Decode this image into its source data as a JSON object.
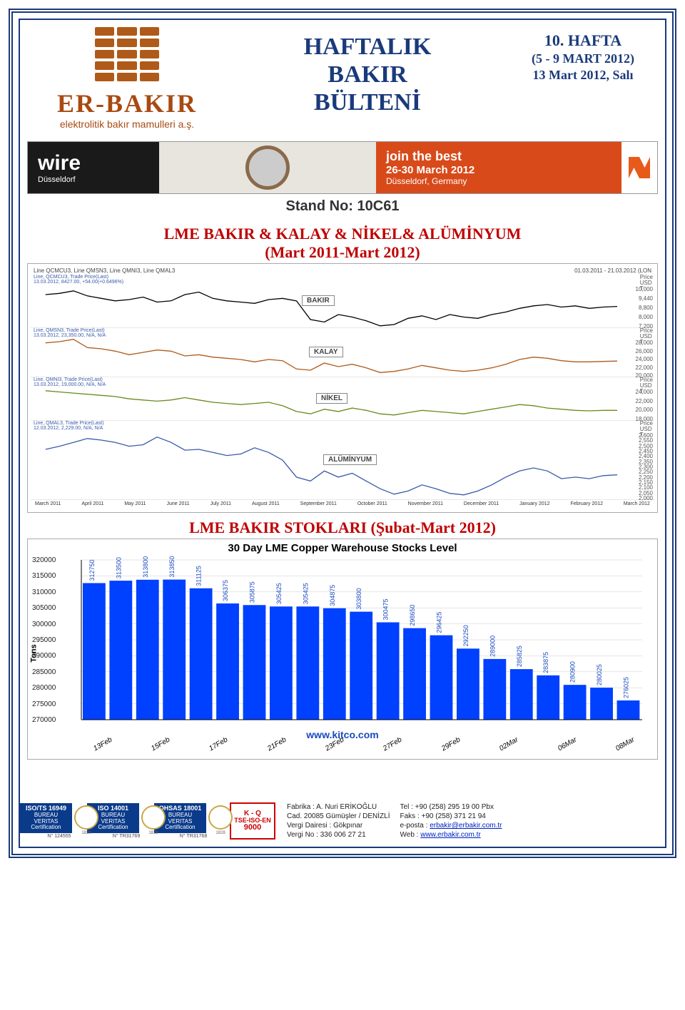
{
  "header": {
    "brand_name": "ER-BAKIR",
    "brand_sub": "elektrolitik bakır mamulleri a.ş.",
    "title_l1": "HAFTALIK",
    "title_l2": "BAKIR",
    "title_l3": "BÜLTENİ",
    "week_no": "10. HAFTA",
    "week_range": "(5 - 9 MART 2012)",
    "issue_date": "13 Mart 2012, Salı"
  },
  "wire_banner": {
    "brand": "wire",
    "city": "Düsseldorf",
    "join": "join the best",
    "dates": "26-30 March 2012",
    "loc": "Düsseldorf, Germany",
    "stand_label": "Stand No: 10C61"
  },
  "lme_section": {
    "title_l1": "LME BAKIR & KALAY & NİKEL& ALÜMİNYUM",
    "title_l2": "(Mart 2011-Mart 2012)",
    "series_header": "Line QCMCU3, Line QMSN3, Line QMNI3, Line QMAL3",
    "date_range": "01.03.2011 - 21.03.2012 (LON",
    "bakir_subhead": "Line, QCMCU3, Trade Price(Last)\n13.03.2012, 8427.00, +54.00(+0.6496%)",
    "kalay_subhead": "Line, QMSN3, Trade Price(Last)\n13.03.2012, 23,350.00, N/A, N/A",
    "nikel_subhead": "Line, QMNI3, Trade Price(Last)\n13.03.2012, 19,000.00, N/A, N/A",
    "alu_subhead": "Line, QMAL3, Trade Price(Last)\n12.03.2012, 2,229.00, N/A, N/A",
    "panels": [
      {
        "label": "BAKIR",
        "color": "#000000",
        "unit": "Price\nUSD\nT",
        "ticks": [
          "10,000",
          "9,440",
          "8,800",
          "8,000",
          "7,200"
        ],
        "ylim": [
          7000,
          10200
        ],
        "points": [
          9400,
          9500,
          9700,
          9300,
          9100,
          8900,
          9000,
          9200,
          8800,
          8900,
          9400,
          9600,
          9100,
          8900,
          8800,
          8700,
          9000,
          9100,
          8900,
          7400,
          7200,
          7800,
          7600,
          7300,
          6900,
          7000,
          7500,
          7700,
          7400,
          7800,
          7600,
          7500,
          7800,
          8000,
          8300,
          8500,
          8600,
          8400,
          8500,
          8300,
          8400,
          8450
        ]
      },
      {
        "label": "KALAY",
        "color": "#b05a1a",
        "unit": "Price\nUSD\nT",
        "ticks": [
          "28,000",
          "26,000",
          "24,000",
          "22,000",
          "20,000"
        ],
        "ylim": [
          18000,
          33000
        ],
        "points": [
          31000,
          31500,
          32500,
          29000,
          28500,
          27500,
          26000,
          27000,
          28000,
          27500,
          25500,
          26000,
          25000,
          24500,
          24000,
          23000,
          24000,
          23500,
          20000,
          19500,
          22500,
          21000,
          22000,
          20500,
          18500,
          19000,
          20000,
          21500,
          20500,
          19500,
          19000,
          19500,
          20500,
          22000,
          24000,
          25000,
          24500,
          23500,
          23000,
          23000,
          23200,
          23350
        ]
      },
      {
        "label": "NİKEL",
        "color": "#6a8a1a",
        "unit": "Price\nUSD\nT",
        "ticks": [
          "24,000",
          "22,000",
          "20,000",
          "18,000"
        ],
        "ylim": [
          16000,
          29000
        ],
        "points": [
          27500,
          27000,
          26500,
          26000,
          25500,
          25000,
          24000,
          23500,
          23000,
          23500,
          24500,
          23500,
          22500,
          22000,
          21500,
          22000,
          22500,
          21000,
          18500,
          17500,
          19500,
          18500,
          20000,
          19000,
          17500,
          17000,
          18000,
          19000,
          18500,
          18000,
          17500,
          18500,
          19500,
          20500,
          21500,
          21000,
          20000,
          19500,
          19000,
          18800,
          19000,
          19000
        ]
      },
      {
        "label": "ALÜMİNYUM",
        "color": "#3a5aaa",
        "unit": "Price\nUSD\nT",
        "ticks": [
          "2,600",
          "2,550",
          "2,500",
          "2,450",
          "2,400",
          "2,350",
          "2,300",
          "2,250",
          "2,200",
          "2,150",
          "2,100",
          "2,050",
          "2,000"
        ],
        "ylim": [
          1950,
          2800
        ],
        "points": [
          2560,
          2600,
          2650,
          2700,
          2680,
          2650,
          2600,
          2620,
          2720,
          2650,
          2550,
          2560,
          2520,
          2480,
          2500,
          2580,
          2520,
          2420,
          2200,
          2150,
          2280,
          2200,
          2250,
          2150,
          2050,
          1980,
          2020,
          2100,
          2050,
          1990,
          1970,
          2020,
          2100,
          2200,
          2280,
          2320,
          2280,
          2180,
          2200,
          2180,
          2220,
          2230
        ]
      }
    ],
    "x_labels": [
      "March 2011",
      "April 2011",
      "May 2011",
      "June 2011",
      "July 2011",
      "August 2011",
      "September 2011",
      "October 2011",
      "November 2011",
      "December 2011",
      "January 2012",
      "February 2012",
      "March 2012"
    ]
  },
  "stocks_section": {
    "title": "LME BAKIR STOKLARI (Şubat-Mart 2012)",
    "chart_title": "30 Day LME Copper Warehouse Stocks Level",
    "y_label": "Tons",
    "y_ticks": [
      320000,
      315000,
      310000,
      305000,
      300000,
      295000,
      290000,
      285000,
      280000,
      275000,
      270000
    ],
    "ylim": [
      270000,
      320000
    ],
    "bar_color": "#0040ff",
    "x_labels": [
      "13Feb",
      "15Feb",
      "17Feb",
      "21Feb",
      "23Feb",
      "27Feb",
      "29Feb",
      "02Mar",
      "06Mar",
      "08Mar"
    ],
    "bars": [
      312750,
      313500,
      313800,
      313850,
      311125,
      306375,
      305875,
      305425,
      305425,
      304875,
      303800,
      300475,
      298650,
      296425,
      292250,
      289000,
      285825,
      283875,
      280900,
      280025,
      276025
    ],
    "source": "www.kitco.com"
  },
  "footer": {
    "certs": [
      {
        "top": "ISO/TS 16949",
        "mid": "BUREAU VERITAS",
        "bot": "Certification",
        "no": "N° 124555"
      },
      {
        "top": "ISO 14001",
        "mid": "BUREAU VERITAS",
        "bot": "Certification",
        "no": "N° TR31769"
      },
      {
        "top": "OHSAS 18001",
        "mid": "BUREAU VERITAS",
        "bot": "Certification",
        "no": "N° TR31768"
      }
    ],
    "tse": {
      "kq": "K - Q",
      "mid": "TSE-ISO-EN",
      "num": "9000"
    },
    "addr": {
      "l1": "Fabrika  : A. Nuri ERİKOĞLU",
      "l2": "Cad. 20085 Gümüşler / DENİZLİ",
      "l3": "Vergi Dairesi : Gökpınar",
      "l4": "Vergi No : 336 006 27 21"
    },
    "contact": {
      "l1": "Tel : +90 (258) 295 19 00 Pbx",
      "l2": "Faks : +90 (258) 371 21 94",
      "l3_pre": "e-posta : ",
      "l3_link": "erbakir@erbakir.com.tr",
      "l4_pre": "Web : ",
      "l4_link": "www.erbakir.com.tr"
    }
  }
}
